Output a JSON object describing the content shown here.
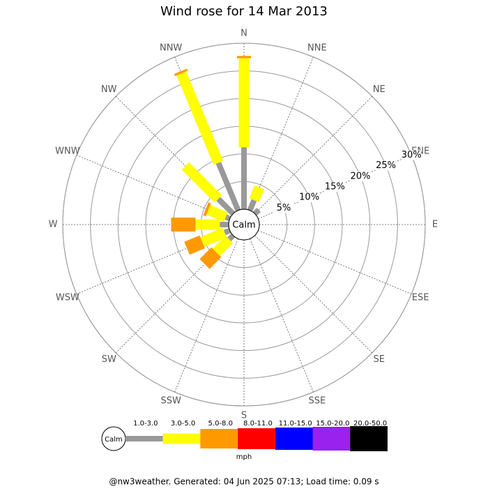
{
  "chart_data": {
    "type": "windrose",
    "title": "Wind rose for 14 Mar 2013",
    "directions": [
      "N",
      "NNE",
      "NE",
      "ENE",
      "E",
      "ESE",
      "SE",
      "SSE",
      "S",
      "SSW",
      "SW",
      "WSW",
      "W",
      "WNW",
      "NW",
      "NNW"
    ],
    "calm_label": "Calm",
    "rlim": [
      0,
      30
    ],
    "rticks": [
      {
        "value": 5,
        "label": "5%"
      },
      {
        "value": 10,
        "label": "10%"
      },
      {
        "value": 15,
        "label": "15%"
      },
      {
        "value": 20,
        "label": "20%"
      },
      {
        "value": 25,
        "label": "25%"
      },
      {
        "value": 30,
        "label": "30%"
      }
    ],
    "units": "mph",
    "series": [
      {
        "name": "1.0-3.0",
        "color": "#999999",
        "values": [
          11.2,
          2.0,
          1.0,
          0,
          0,
          0,
          0,
          0,
          0,
          0,
          1.0,
          1.0,
          1.6,
          0.8,
          3.8,
          9.3
        ]
      },
      {
        "name": "3.0-5.0",
        "color": "#ffff00",
        "values": [
          16.1,
          2.5,
          0,
          0,
          0,
          0,
          0,
          0,
          0,
          0,
          3.3,
          4.4,
          4.4,
          3.4,
          8.4,
          17.5
        ]
      },
      {
        "name": "5.0-8.0",
        "color": "#ff9900",
        "values": [
          0.4,
          0,
          0,
          0,
          0,
          0,
          0,
          0,
          0,
          0,
          3.0,
          3.0,
          4.4,
          0.5,
          0,
          0.4
        ]
      },
      {
        "name": "8.0-11.0",
        "color": "#ff0000",
        "values": [
          0,
          0,
          0,
          0,
          0,
          0,
          0,
          0,
          0,
          0,
          0,
          0,
          0,
          0,
          0,
          0
        ]
      },
      {
        "name": "11.0-15.0",
        "color": "#0000ff",
        "values": [
          0,
          0,
          0,
          0,
          0,
          0,
          0,
          0,
          0,
          0,
          0,
          0,
          0,
          0,
          0,
          0
        ]
      },
      {
        "name": "15.0-20.0",
        "color": "#9922ee",
        "values": [
          0,
          0,
          0,
          0,
          0,
          0,
          0,
          0,
          0,
          0,
          0,
          0,
          0,
          0,
          0,
          0
        ]
      },
      {
        "name": "20.0-50.0",
        "color": "#000000",
        "values": [
          0,
          0,
          0,
          0,
          0,
          0,
          0,
          0,
          0,
          0,
          0,
          0,
          0,
          0,
          0,
          0
        ]
      }
    ]
  },
  "footer": "@nw3weather. Generated: 04 Jun 2025 07:13; Load time: 0.09 s"
}
